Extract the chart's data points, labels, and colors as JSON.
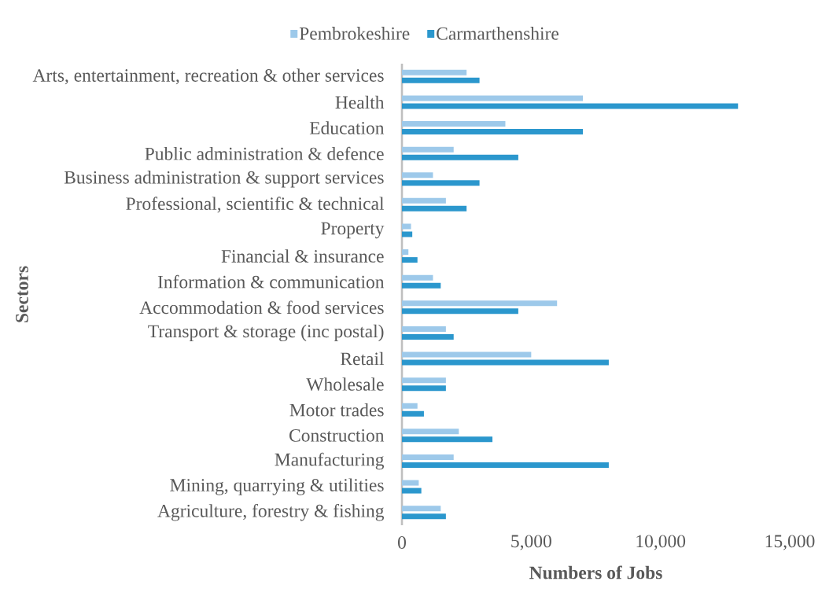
{
  "chart_data": {
    "type": "bar",
    "orientation": "horizontal",
    "xlabel": "Numbers of Jobs",
    "ylabel": "Sectors",
    "categories": [
      "Arts, entertainment, recreation & other services",
      "Health",
      "Education",
      "Public administration & defence",
      "Business administration & support services",
      "Professional, scientific & technical",
      "Property",
      "Financial & insurance",
      "Information & communication",
      "Accommodation & food services",
      "Transport & storage (inc postal)",
      "Retail",
      "Wholesale",
      "Motor trades",
      "Construction",
      "Manufacturing",
      "Mining, quarrying & utilities",
      "Agriculture, forestry & fishing"
    ],
    "series": [
      {
        "name": "Pembrokeshire",
        "color": "#9dc9ea",
        "values": [
          2500,
          7000,
          4000,
          2000,
          1200,
          1700,
          350,
          250,
          1200,
          6000,
          1700,
          5000,
          1700,
          600,
          2200,
          2000,
          650,
          1500
        ]
      },
      {
        "name": "Carmarthenshire",
        "color": "#2b97cd",
        "values": [
          3000,
          13000,
          7000,
          4500,
          3000,
          2500,
          400,
          600,
          1500,
          4500,
          2000,
          8000,
          1700,
          850,
          3500,
          8000,
          750,
          1700
        ]
      }
    ],
    "xlim": [
      0,
      15000
    ],
    "xticks": [
      0,
      {
        "value": 5000,
        "label": "5,000"
      },
      {
        "value": 10000,
        "label": "10,000"
      },
      {
        "value": 15000,
        "label": "15,000"
      }
    ],
    "legend": "top"
  }
}
